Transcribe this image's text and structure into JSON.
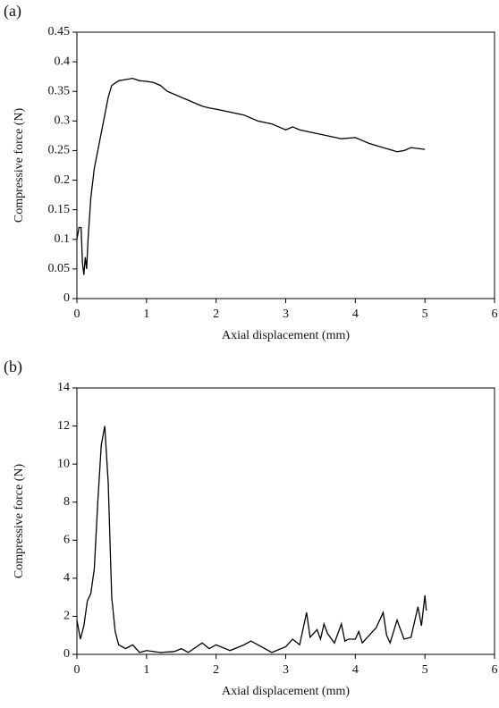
{
  "chart_data": [
    {
      "type": "line",
      "panel_label": "(a)",
      "x_label": "Axial displacement (mm)",
      "y_label": "Compressive force (N)",
      "xlim": [
        0,
        6
      ],
      "xticks": [
        0,
        1,
        2,
        3,
        4,
        5,
        6
      ],
      "ylim": [
        0,
        0.45
      ],
      "yticks": [
        0,
        0.05,
        0.1,
        0.15,
        0.2,
        0.25,
        0.3,
        0.35,
        0.4,
        0.45
      ],
      "color": "#000000",
      "x": [
        0,
        0.03,
        0.06,
        0.08,
        0.1,
        0.12,
        0.14,
        0.16,
        0.2,
        0.25,
        0.3,
        0.35,
        0.4,
        0.45,
        0.5,
        0.6,
        0.7,
        0.8,
        0.9,
        1.0,
        1.1,
        1.2,
        1.3,
        1.4,
        1.5,
        1.6,
        1.7,
        1.8,
        1.9,
        2.0,
        2.2,
        2.4,
        2.6,
        2.8,
        2.9,
        3.0,
        3.1,
        3.2,
        3.4,
        3.6,
        3.8,
        4.0,
        4.2,
        4.4,
        4.6,
        4.7,
        4.8,
        5.0
      ],
      "values": [
        0.1,
        0.12,
        0.12,
        0.06,
        0.04,
        0.07,
        0.05,
        0.1,
        0.17,
        0.22,
        0.25,
        0.28,
        0.31,
        0.34,
        0.36,
        0.368,
        0.37,
        0.372,
        0.368,
        0.367,
        0.365,
        0.36,
        0.35,
        0.345,
        0.34,
        0.335,
        0.33,
        0.325,
        0.322,
        0.32,
        0.315,
        0.31,
        0.3,
        0.295,
        0.29,
        0.285,
        0.29,
        0.285,
        0.28,
        0.275,
        0.27,
        0.272,
        0.262,
        0.255,
        0.248,
        0.25,
        0.255,
        0.252
      ]
    },
    {
      "type": "line",
      "panel_label": "(b)",
      "x_label": "Axial displacement (mm)",
      "y_label": "Compressive force (N)",
      "xlim": [
        0,
        6
      ],
      "xticks": [
        0,
        1,
        2,
        3,
        4,
        5,
        6
      ],
      "ylim": [
        0,
        14
      ],
      "yticks": [
        0,
        2,
        4,
        6,
        8,
        10,
        12,
        14
      ],
      "color": "#000000",
      "x": [
        0,
        0.05,
        0.1,
        0.15,
        0.2,
        0.25,
        0.3,
        0.35,
        0.4,
        0.45,
        0.5,
        0.55,
        0.6,
        0.7,
        0.8,
        0.9,
        1.0,
        1.2,
        1.4,
        1.5,
        1.6,
        1.8,
        1.9,
        2.0,
        2.2,
        2.4,
        2.5,
        2.6,
        2.8,
        3.0,
        3.1,
        3.2,
        3.3,
        3.35,
        3.45,
        3.5,
        3.55,
        3.6,
        3.7,
        3.8,
        3.85,
        3.9,
        4.0,
        4.05,
        4.1,
        4.2,
        4.3,
        4.4,
        4.45,
        4.5,
        4.6,
        4.7,
        4.8,
        4.9,
        4.95,
        5.0,
        5.02
      ],
      "values": [
        1.8,
        0.8,
        1.5,
        2.8,
        3.2,
        4.5,
        8,
        11,
        12,
        9,
        3,
        1.2,
        0.5,
        0.3,
        0.5,
        0.1,
        0.2,
        0.1,
        0.15,
        0.3,
        0.1,
        0.6,
        0.3,
        0.5,
        0.2,
        0.5,
        0.7,
        0.5,
        0.1,
        0.4,
        0.8,
        0.5,
        2.2,
        0.9,
        1.3,
        0.8,
        1.6,
        1.1,
        0.6,
        1.6,
        0.7,
        0.8,
        0.8,
        1.2,
        0.6,
        1.0,
        1.4,
        2.2,
        1.0,
        0.6,
        1.8,
        0.8,
        0.9,
        2.5,
        1.5,
        3.1,
        2.3
      ]
    }
  ]
}
